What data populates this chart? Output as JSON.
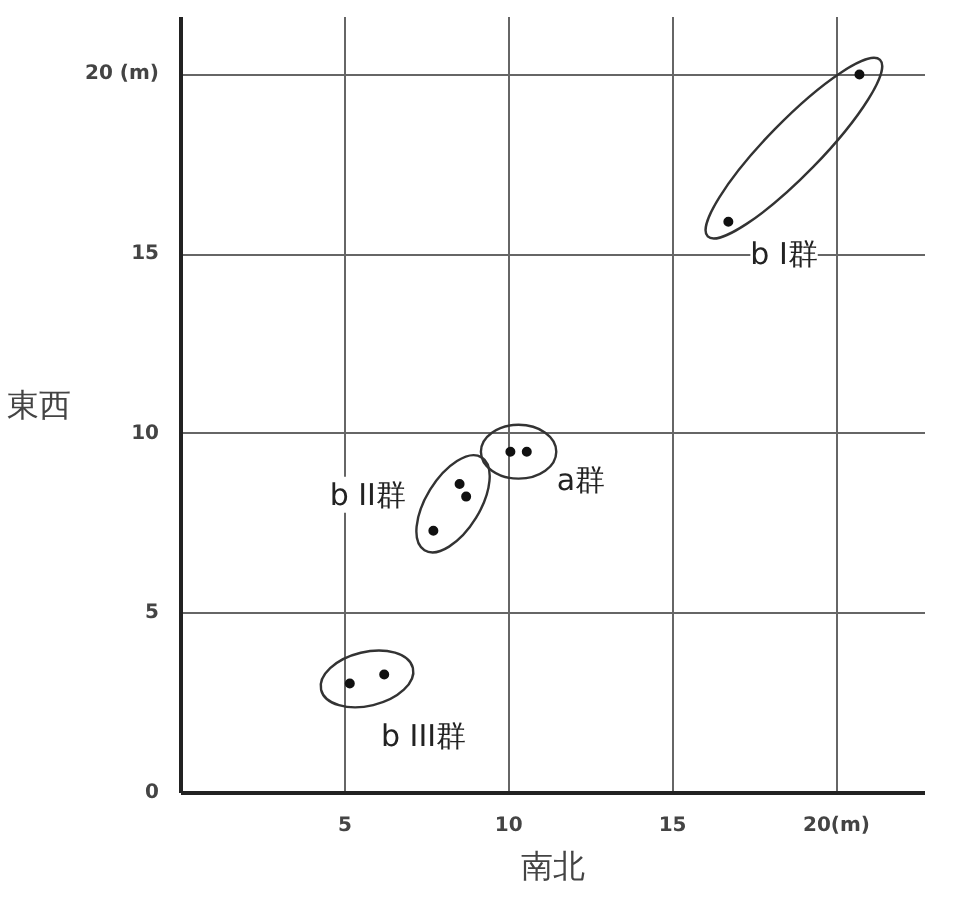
{
  "chart_data": {
    "type": "scatter",
    "xlabel": "南北",
    "ylabel": "東西",
    "xlim": [
      0,
      22.7
    ],
    "ylim": [
      0,
      21.6
    ],
    "xticks": [
      {
        "value": 0,
        "label": null
      },
      5,
      10,
      15,
      {
        "value": 20,
        "label": "20(m)"
      }
    ],
    "yticks": [
      0,
      5,
      10,
      15,
      {
        "value": 20,
        "label": "20 (m)"
      }
    ],
    "grid": true,
    "marker": "circle",
    "series": [
      {
        "color": "#111111",
        "x": [
          20.7,
          16.7
        ],
        "values": [
          20.0,
          15.9
        ]
      },
      {
        "color": "#111111",
        "x": [
          10.05,
          10.55
        ],
        "values": [
          9.5,
          9.5
        ]
      },
      {
        "color": "#111111",
        "x": [
          8.5,
          8.7,
          7.7
        ],
        "values": [
          8.6,
          8.25,
          7.3
        ]
      },
      {
        "color": "#111111",
        "x": [
          5.15,
          6.2
        ],
        "values": [
          3.05,
          3.3
        ]
      }
    ],
    "annotations": [
      {
        "text": "b I群",
        "x": 18.4,
        "y": 15.0
      },
      {
        "text": "a群",
        "x": 12.2,
        "y": 8.7
      },
      {
        "text": "b II群",
        "x": 5.7,
        "y": 8.3
      },
      {
        "text": "b III群",
        "x": 7.4,
        "y": 1.6
      }
    ]
  }
}
